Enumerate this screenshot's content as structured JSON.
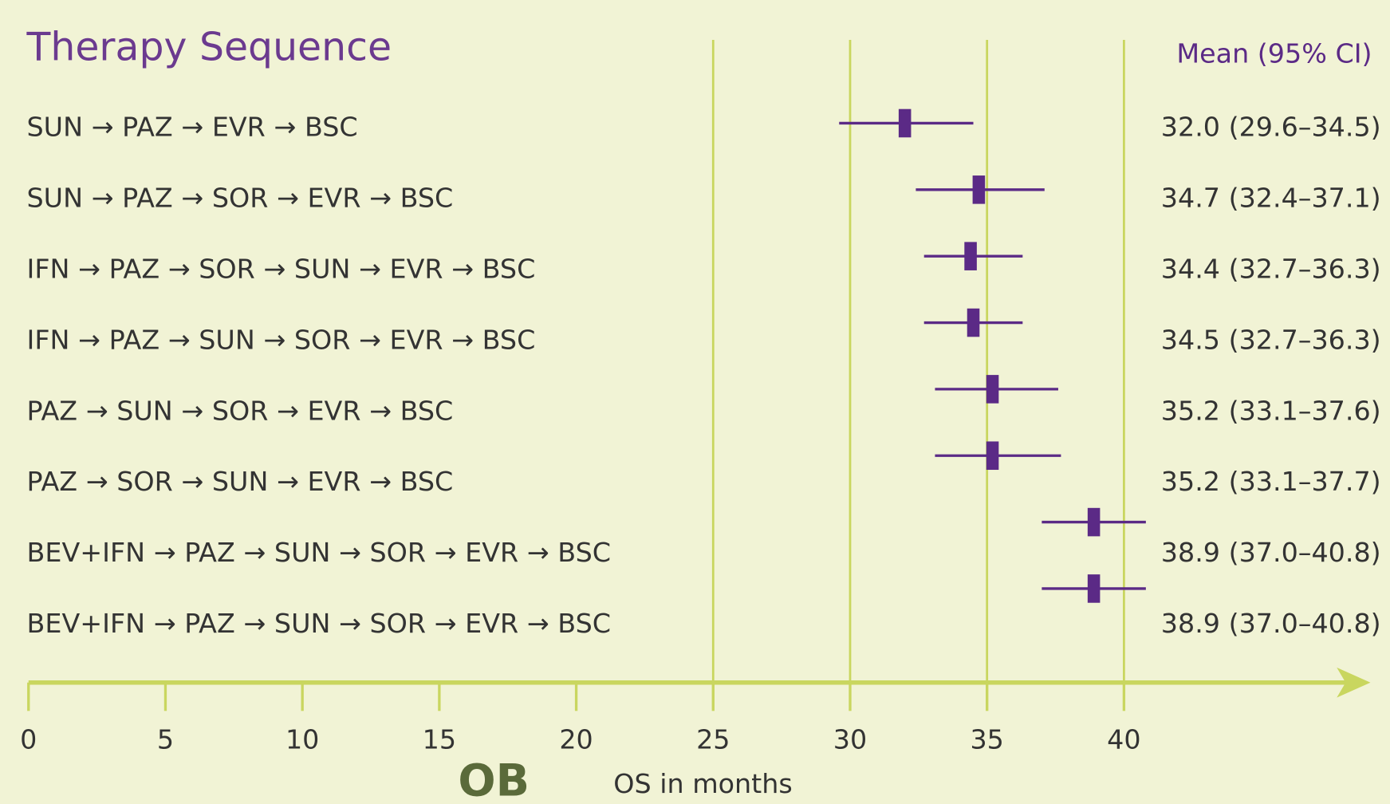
{
  "chart_data": {
    "type": "forest",
    "title": "Therapy Sequence",
    "value_header": "Mean (95% CI)",
    "x_label": "OS in months",
    "logo": "OB",
    "categories": [
      "SUN → PAZ → EVR → BSC",
      "SUN → PAZ → SOR → EVR → BSC",
      "IFN → PAZ → SOR → SUN → EVR → BSC",
      "IFN → PAZ → SUN → SOR → EVR → BSC",
      "PAZ → SUN → SOR → EVR → BSC",
      "PAZ → SOR → SUN → EVR → BSC",
      "BEV+IFN → PAZ → SUN → SOR → EVR → BSC",
      "BEV+IFN → PAZ → SUN → SOR → EVR → BSC"
    ],
    "values": [
      32.0,
      34.7,
      34.4,
      34.5,
      35.2,
      35.2,
      38.9,
      38.9
    ],
    "ci_low": [
      29.6,
      32.4,
      32.7,
      32.7,
      33.1,
      33.1,
      37.0,
      37.0
    ],
    "ci_high": [
      34.5,
      37.1,
      36.3,
      36.3,
      37.6,
      37.7,
      40.8,
      40.8
    ],
    "value_labels": [
      "32.0 (29.6–34.5)",
      "34.7 (32.4–37.1)",
      "34.4 (32.7–36.3)",
      "34.5 (32.7–36.3)",
      "35.2 (33.1–37.6)",
      "35.2 (33.1–37.7)",
      "38.9 (37.0–40.8)",
      "38.9 (37.0–40.8)"
    ],
    "color": "#5b2a86",
    "axis_color": "#c9d65f",
    "xlim": [
      0,
      49
    ],
    "xticks": [
      0,
      5,
      10,
      15,
      20,
      25,
      30,
      35,
      40
    ],
    "gridlines": [
      25,
      30,
      35,
      40
    ]
  }
}
